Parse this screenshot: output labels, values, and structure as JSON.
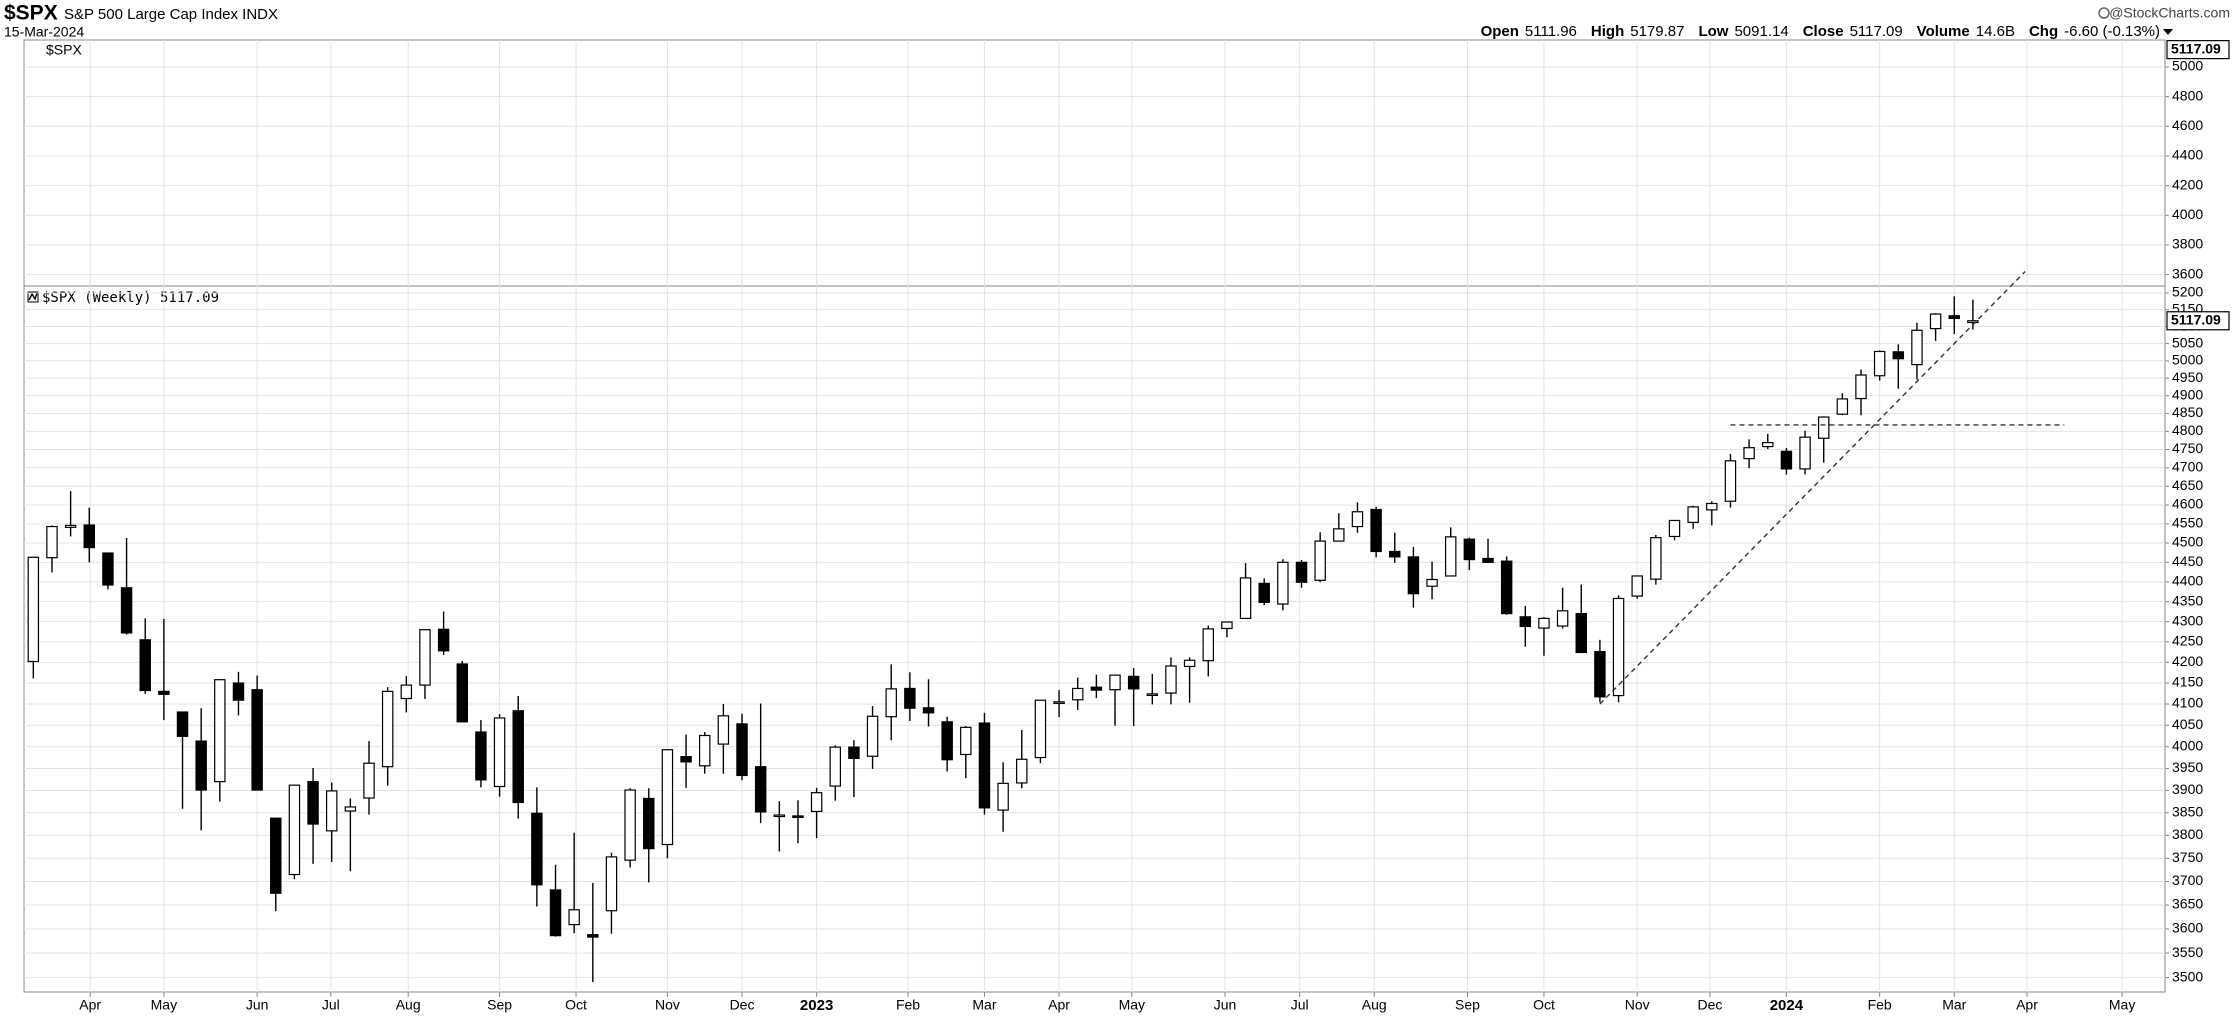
{
  "chart_data": {
    "type": "candlestick",
    "title": "$SPX",
    "subtitle": "S&P 500 Large Cap Index INDX",
    "date": "15-Mar-2024",
    "watermark": "@StockCharts.com",
    "quote": [
      {
        "label": "Open",
        "text": "5111.96"
      },
      {
        "label": "High",
        "text": "5179.87"
      },
      {
        "label": "Low",
        "text": "5091.14"
      },
      {
        "label": "Close",
        "text": "5117.09"
      },
      {
        "label": "Volume",
        "text": "14.6B"
      },
      {
        "label": "Chg",
        "text": "-6.60 (-0.13%)"
      }
    ],
    "upper_panel": {
      "label": "$SPX",
      "ylim": [
        3523,
        5182
      ],
      "yticks": [
        5000,
        4800,
        4600,
        4400,
        4200,
        4000,
        3800,
        3600
      ]
    },
    "panel_label": "$SPX (Weekly) 5117.09",
    "log_scale": true,
    "grid": true,
    "up_color": "#ffffff",
    "down_color": "#000000",
    "ylim": [
      3471,
      5221
    ],
    "yticks": [
      5200,
      5150,
      5100,
      5050,
      5000,
      4950,
      4900,
      4850,
      4800,
      4750,
      4700,
      4650,
      4600,
      4550,
      4500,
      4450,
      4400,
      4350,
      4300,
      4250,
      4200,
      4150,
      4100,
      4050,
      4000,
      3950,
      3900,
      3850,
      3800,
      3750,
      3700,
      3650,
      3600,
      3550,
      3500
    ],
    "xlim": [
      -0.5,
      114.3
    ],
    "xticks": [
      {
        "value": 3.05,
        "label": "Apr"
      },
      {
        "value": 7.0,
        "label": "May"
      },
      {
        "value": 12.0,
        "label": "Jun"
      },
      {
        "value": 15.95,
        "label": "Jul"
      },
      {
        "value": 20.1,
        "label": "Aug"
      },
      {
        "value": 25.0,
        "label": "Sep"
      },
      {
        "value": 29.1,
        "label": "Oct"
      },
      {
        "value": 34.0,
        "label": "Nov"
      },
      {
        "value": 38.0,
        "label": "Dec"
      },
      {
        "value": 42.0,
        "label": "2023"
      },
      {
        "value": 46.9,
        "label": "Feb"
      },
      {
        "value": 51.0,
        "label": "Mar"
      },
      {
        "value": 55.0,
        "label": "Apr"
      },
      {
        "value": 58.9,
        "label": "May"
      },
      {
        "value": 63.9,
        "label": "Jun"
      },
      {
        "value": 67.9,
        "label": "Jul"
      },
      {
        "value": 71.9,
        "label": "Aug"
      },
      {
        "value": 76.9,
        "label": "Sep"
      },
      {
        "value": 81.0,
        "label": "Oct"
      },
      {
        "value": 86.0,
        "label": "Nov"
      },
      {
        "value": 89.9,
        "label": "Dec"
      },
      {
        "value": 94.0,
        "label": "2024"
      },
      {
        "value": 99.0,
        "label": "Feb"
      },
      {
        "value": 103.0,
        "label": "Mar"
      },
      {
        "value": 106.9,
        "label": "Apr"
      },
      {
        "value": 112.0,
        "label": "May"
      }
    ],
    "open": [
      4202,
      4462,
      4541,
      4547,
      4474,
      4385,
      4255,
      4130,
      4081,
      4013,
      3920,
      4150,
      4134,
      3838,
      3715,
      3920,
      3810,
      3854,
      3883,
      3954,
      4113,
      4145,
      4281,
      4196,
      4034,
      3909,
      4084,
      3849,
      3682,
      3609,
      3588,
      3638,
      3746,
      3882,
      3780,
      3977,
      3956,
      4006,
      4053,
      3954,
      3845,
      3843,
      3853,
      3910,
      3999,
      3978,
      4070,
      4137,
      4091,
      4058,
      3982,
      4055,
      3856,
      3917,
      3975,
      4102,
      4110,
      4140,
      4134,
      4166,
      4123,
      4126,
      4190,
      4204,
      4283,
      4308,
      4396,
      4344,
      4450,
      4404,
      4505,
      4543,
      4588,
      4478,
      4464,
      4389,
      4415,
      4510,
      4460,
      4453,
      4312,
      4284,
      4289,
      4320,
      4226,
      4120,
      4364,
      4407,
      4517,
      4554,
      4587,
      4610,
      4725,
      4758,
      4745,
      4697,
      4781,
      4848,
      4892,
      4957,
      5026,
      4989,
      5094,
      5132,
      5111.96
    ],
    "high": [
      4465,
      4546,
      4637,
      4593,
      4475,
      4513,
      4308,
      4307,
      4081,
      4090,
      4158,
      4177,
      4168,
      3838,
      3913,
      3951,
      3918,
      3882,
      4013,
      4140,
      4167,
      4280,
      4325,
      4203,
      4062,
      4076,
      4119,
      3907,
      3736,
      3806,
      3697,
      3762,
      3905,
      3905,
      3993,
      4028,
      4034,
      4100,
      4077,
      4101,
      3876,
      3878,
      3906,
      4003,
      4015,
      4095,
      4195,
      4176,
      4159,
      4070,
      4048,
      4079,
      3964,
      4039,
      4110,
      4133,
      4163,
      4170,
      4170,
      4186,
      4172,
      4212,
      4212,
      4290,
      4299,
      4448,
      4409,
      4458,
      4456,
      4528,
      4578,
      4607,
      4595,
      4527,
      4490,
      4452,
      4541,
      4514,
      4511,
      4465,
      4339,
      4311,
      4385,
      4393,
      4255,
      4366,
      4415,
      4521,
      4560,
      4598,
      4610,
      4738,
      4778,
      4793,
      4754,
      4802,
      4842,
      4907,
      4975,
      5030,
      5048,
      5111,
      5140,
      5190,
      5179.87
    ],
    "low": [
      4161,
      4424,
      4517,
      4450,
      4381,
      4268,
      4124,
      4062,
      3859,
      3811,
      3875,
      4073,
      3900,
      3637,
      3705,
      3738,
      3742,
      3722,
      3846,
      3911,
      4080,
      4112,
      4218,
      4057,
      3907,
      3886,
      3837,
      3647,
      3584,
      3591,
      3491,
      3590,
      3730,
      3698,
      3750,
      3906,
      3938,
      3938,
      3923,
      3827,
      3765,
      3783,
      3794,
      3877,
      3885,
      3949,
      4015,
      4060,
      4047,
      3943,
      3928,
      3846,
      3808,
      3905,
      3962,
      4069,
      4086,
      4114,
      4049,
      4048,
      4099,
      4099,
      4103,
      4166,
      4261,
      4308,
      4341,
      4328,
      4385,
      4399,
      4505,
      4527,
      4463,
      4449,
      4335,
      4356,
      4414,
      4430,
      4448,
      4317,
      4238,
      4216,
      4283,
      4223,
      4104,
      4104,
      4357,
      4393,
      4507,
      4537,
      4546,
      4593,
      4699,
      4751,
      4682,
      4682,
      4714,
      4845,
      4845,
      4943,
      4920,
      4946,
      5058,
      5078,
      5091.14
    ],
    "close": [
      4463,
      4543,
      4546,
      4488,
      4392,
      4272,
      4132,
      4123,
      4024,
      3901,
      4158,
      4109,
      3901,
      3675,
      3912,
      3825,
      3899,
      3863,
      3962,
      4130,
      4145,
      4280,
      4228,
      4058,
      3924,
      4067,
      3873,
      3693,
      3586,
      3640,
      3583,
      3753,
      3901,
      3771,
      3993,
      3965,
      4026,
      4072,
      3934,
      3852,
      3845,
      3840,
      3895,
      3999,
      3973,
      4071,
      4136,
      4090,
      4079,
      3970,
      4045,
      3861,
      3916,
      3971,
      4109,
      4105,
      4137,
      4133,
      4169,
      4136,
      4124,
      4191,
      4205,
      4282,
      4299,
      4410,
      4348,
      4450,
      4399,
      4505,
      4537,
      4582,
      4478,
      4464,
      4370,
      4406,
      4516,
      4457,
      4450,
      4320,
      4288,
      4308,
      4327,
      4224,
      4117,
      4358,
      4415,
      4514,
      4559,
      4595,
      4604,
      4719,
      4755,
      4769,
      4697,
      4784,
      4840,
      4891,
      4959,
      5027,
      5006,
      5089,
      5137,
      5124,
      5117.09
    ],
    "trendlines": [
      {
        "x": [
          84,
          106.8
        ],
        "y": [
          4100,
          5265
        ]
      },
      {
        "x": [
          91,
          108.9
        ],
        "y": [
          4818,
          4818
        ]
      }
    ]
  }
}
